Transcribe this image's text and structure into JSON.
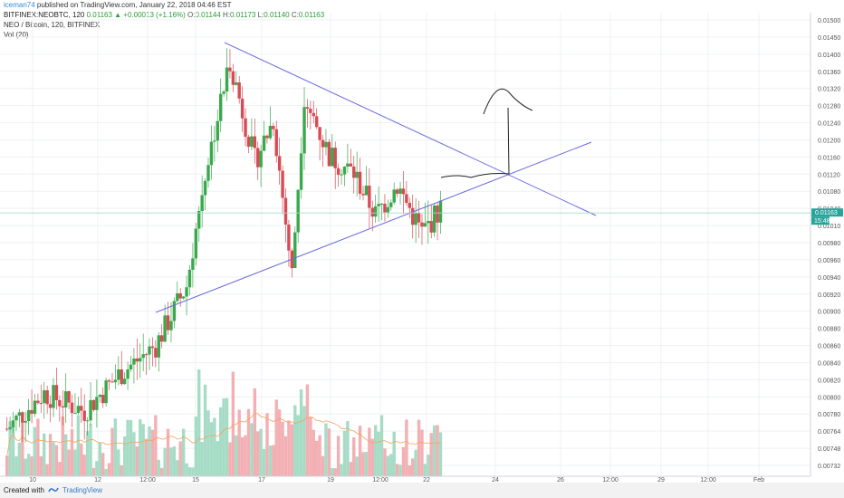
{
  "header": {
    "author": "iceman74",
    "published": " published on TradingView.com, January 22, 2018 04:46 EST",
    "symbol": "BITFINEX:NEOBTC, 120",
    "last": "0.01163",
    "change": "▲ +0.00013 (+1.16%)",
    "o_label": "O:",
    "o_value": "0.01144",
    "h_label": "H:",
    "h_value": "0.01173",
    "l_label": "L:",
    "l_value": "0.01140",
    "c_label": "C:",
    "c_value": "0.01163",
    "title": "NEO / Bitcoin, 120, BITFINEX",
    "volume_label": "Vol (20)"
  },
  "footer": {
    "created_with": "Created with",
    "brand": "TradingView"
  },
  "colors": {
    "up": "#26a69a",
    "up_candle": "#3aa84c",
    "down": "#d84b55",
    "vol_up": "#a6dcc6",
    "vol_down": "#f3b0b4",
    "trendline": "#6a6ae0",
    "vol_ma": "#f5a25d",
    "drawing": "#222222",
    "grid": "#eef1f4"
  },
  "chart_data": {
    "type": "candlestick",
    "title": "NEO / Bitcoin, 120, BITFINEX",
    "ylim": [
      0.0072,
      0.015
    ],
    "y_ticks": [
      "0.01500",
      "0.01450",
      "0.01400",
      "0.01360",
      "0.01320",
      "0.01280",
      "0.01240",
      "0.01200",
      "0.01160",
      "0.01120",
      "0.01080",
      "0.01040",
      "0.01010",
      "0.00980",
      "0.00960",
      "0.00940",
      "0.00920",
      "0.00900",
      "0.00880",
      "0.00860",
      "0.00840",
      "0.00820",
      "0.00800",
      "0.00780",
      "0.00764",
      "0.00748",
      "0.00732"
    ],
    "x_ticks": [
      "10",
      "12",
      "12:00",
      "15",
      "17",
      "19",
      "12:00",
      "22",
      "24",
      "26",
      "12:00",
      "29",
      "12:00",
      "Feb"
    ],
    "last_price": "0.01163",
    "price_time_badge": "15:48",
    "ohlc_segments": [
      {
        "from": [
          0,
          0.008
        ],
        "to": [
          12,
          0.0086
        ]
      },
      {
        "from": [
          12,
          0.0086
        ],
        "to": [
          25,
          0.0083
        ]
      },
      {
        "from": [
          25,
          0.0083
        ],
        "to": [
          36,
          0.0089
        ]
      },
      {
        "from": [
          36,
          0.0089
        ],
        "to": [
          48,
          0.0094
        ]
      },
      {
        "from": [
          48,
          0.0094
        ],
        "to": [
          58,
          0.0104
        ]
      },
      {
        "from": [
          58,
          0.0104
        ],
        "to": [
          64,
          0.0123
        ]
      },
      {
        "from": [
          64,
          0.0123
        ],
        "to": [
          72,
          0.0142
        ]
      },
      {
        "from": [
          72,
          0.0142
        ],
        "to": [
          80,
          0.0125
        ]
      },
      {
        "from": [
          80,
          0.0125
        ],
        "to": [
          86,
          0.0132
        ]
      },
      {
        "from": [
          86,
          0.0132
        ],
        "to": [
          92,
          0.0106
        ]
      },
      {
        "from": [
          92,
          0.0106
        ],
        "to": [
          96,
          0.0136
        ]
      },
      {
        "from": [
          96,
          0.0136
        ],
        "to": [
          104,
          0.0126
        ]
      },
      {
        "from": [
          104,
          0.0126
        ],
        "to": [
          112,
          0.0123
        ]
      },
      {
        "from": [
          112,
          0.0123
        ],
        "to": [
          119,
          0.0116
        ]
      },
      {
        "from": [
          119,
          0.0116
        ],
        "to": [
          126,
          0.0121
        ]
      },
      {
        "from": [
          126,
          0.0121
        ],
        "to": [
          134,
          0.0113
        ]
      },
      {
        "from": [
          134,
          0.0113
        ],
        "to": [
          140,
          0.0117
        ]
      }
    ],
    "volume_max": 1.0,
    "volume_ma": "Vol (20)"
  }
}
